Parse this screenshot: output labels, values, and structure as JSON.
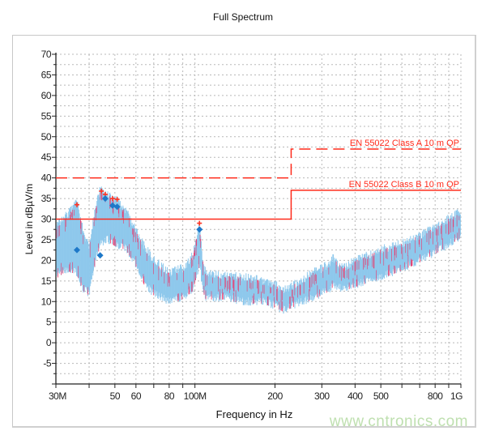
{
  "chart_data": {
    "type": "line",
    "title": "Full Spectrum",
    "xlabel": "Frequency in Hz",
    "ylabel": "Level in dBµV/m",
    "x_scale": "log",
    "xlim_mhz": [
      30,
      1000
    ],
    "ylim": [
      -10,
      70
    ],
    "y_ticks": [
      -5,
      0,
      5,
      10,
      15,
      20,
      25,
      30,
      35,
      40,
      45,
      50,
      55,
      60,
      65,
      70
    ],
    "x_ticks": [
      {
        "mhz": 30,
        "label": "30M"
      },
      {
        "mhz": 50,
        "label": "50"
      },
      {
        "mhz": 60,
        "label": "60"
      },
      {
        "mhz": 80,
        "label": "80"
      },
      {
        "mhz": 100,
        "label": "100M"
      },
      {
        "mhz": 200,
        "label": "200"
      },
      {
        "mhz": 300,
        "label": "300"
      },
      {
        "mhz": 400,
        "label": "400"
      },
      {
        "mhz": 500,
        "label": "500"
      },
      {
        "mhz": 800,
        "label": "800"
      },
      {
        "mhz": 1000,
        "label": "1G"
      }
    ],
    "x_gridlines_mhz": [
      30,
      40,
      50,
      60,
      70,
      80,
      90,
      100,
      200,
      300,
      400,
      500,
      600,
      700,
      800,
      900,
      1000
    ],
    "grid": true,
    "limits": [
      {
        "name": "EN 55022 Class A 10 m QP",
        "style": "dashed",
        "color": "#ff2a1a",
        "points": [
          [
            30,
            40
          ],
          [
            230,
            40
          ],
          [
            230,
            47
          ],
          [
            1000,
            47
          ]
        ]
      },
      {
        "name": "EN 55022 Class B 10 m QP",
        "style": "solid",
        "color": "#ff2a1a",
        "points": [
          [
            30,
            30
          ],
          [
            230,
            30
          ],
          [
            230,
            37
          ],
          [
            1000,
            37
          ]
        ]
      }
    ],
    "spectrum": {
      "color_fill": "#8ec8ec",
      "color_peak": "#ee3366",
      "points_mhz_low_high": [
        [
          30,
          17,
          27
        ],
        [
          33,
          19,
          30
        ],
        [
          36,
          18,
          33
        ],
        [
          38,
          14,
          26
        ],
        [
          40,
          13,
          22
        ],
        [
          42,
          20,
          31
        ],
        [
          44,
          25,
          36
        ],
        [
          47,
          26,
          35
        ],
        [
          50,
          25,
          34
        ],
        [
          55,
          24,
          31
        ],
        [
          60,
          20,
          26
        ],
        [
          65,
          15,
          22
        ],
        [
          70,
          13,
          19
        ],
        [
          80,
          11,
          16
        ],
        [
          90,
          12,
          17
        ],
        [
          98,
          14,
          20
        ],
        [
          104,
          20,
          28
        ],
        [
          107,
          14,
          19
        ],
        [
          110,
          12,
          16
        ],
        [
          130,
          12,
          15
        ],
        [
          150,
          11,
          15
        ],
        [
          180,
          11,
          14
        ],
        [
          200,
          10,
          13
        ],
        [
          215,
          9,
          11.5
        ],
        [
          250,
          11,
          14
        ],
        [
          280,
          12,
          16
        ],
        [
          320,
          14,
          18
        ],
        [
          330,
          15,
          19.5
        ],
        [
          360,
          14,
          17
        ],
        [
          400,
          15,
          19
        ],
        [
          500,
          17,
          21.5
        ],
        [
          600,
          19,
          23
        ],
        [
          700,
          21,
          25
        ],
        [
          800,
          23,
          27
        ],
        [
          900,
          25,
          29
        ],
        [
          1000,
          27,
          31
        ]
      ]
    },
    "peak_markers": {
      "symbol": "plus",
      "color": "#ff3322",
      "points": [
        [
          36,
          33.5
        ],
        [
          44.5,
          36.8
        ],
        [
          46,
          36
        ],
        [
          49,
          35
        ],
        [
          51,
          34.8
        ],
        [
          104,
          29
        ]
      ]
    },
    "qp_markers": {
      "symbol": "diamond",
      "color": "#1e78c8",
      "points": [
        [
          36,
          22.5
        ],
        [
          44,
          21.2
        ],
        [
          46,
          35
        ],
        [
          49,
          33.3
        ],
        [
          51,
          33
        ],
        [
          104,
          27.5
        ]
      ]
    }
  },
  "watermark": "www.cntronics.com"
}
